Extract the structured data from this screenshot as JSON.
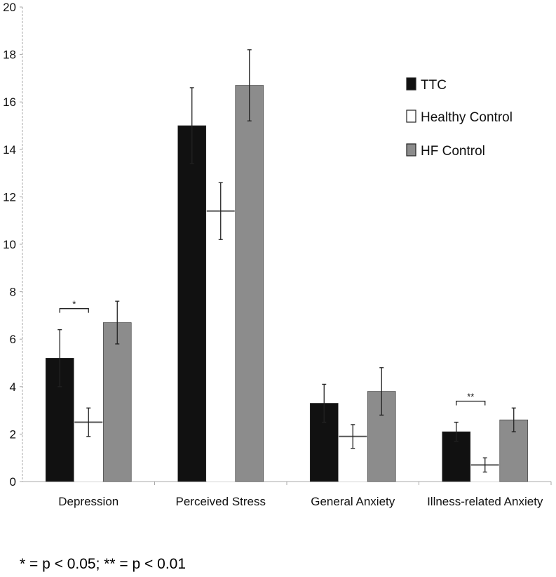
{
  "chart_data": {
    "type": "bar",
    "categories": [
      "Depression",
      "Perceived Stress",
      "General Anxiety",
      "Illness-related Anxiety"
    ],
    "series": [
      {
        "name": "TTC",
        "color": "#111111",
        "values": [
          5.2,
          15.0,
          3.3,
          2.1
        ],
        "error": [
          1.2,
          1.6,
          0.8,
          0.4
        ]
      },
      {
        "name": "Healthy Control",
        "color": "#ffffff",
        "values": [
          2.5,
          11.4,
          1.9,
          0.7
        ],
        "error": [
          0.6,
          1.2,
          0.5,
          0.3
        ]
      },
      {
        "name": "HF Control",
        "color": "#8c8c8c",
        "values": [
          6.7,
          16.7,
          3.8,
          2.6
        ],
        "error": [
          0.9,
          1.5,
          1.0,
          0.5
        ]
      }
    ],
    "yticks": [
      "0",
      "2",
      "4",
      "6",
      "8",
      "10",
      "12",
      "14",
      "16",
      "18",
      "20"
    ],
    "ylim": [
      0,
      20
    ],
    "title": "",
    "xlabel": "",
    "ylabel": "",
    "legend_position": "right",
    "grid": false,
    "significance": [
      {
        "category": "Depression",
        "label": "*"
      },
      {
        "category": "Illness-related Anxiety",
        "label": "**"
      }
    ]
  },
  "footnote": "* = p < 0.05; ** = p < 0.01"
}
